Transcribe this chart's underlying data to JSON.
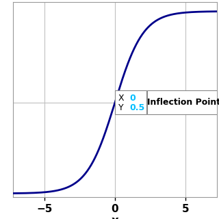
{
  "title": "",
  "xlabel": "x",
  "xlim": [
    -7.2,
    7.2
  ],
  "ylim": [
    -0.02,
    1.05
  ],
  "xticks": [
    -5,
    0,
    5
  ],
  "line_color": "#00008B",
  "line_width": 2.0,
  "background_color": "#ffffff",
  "grid_color": "#c0c0c0",
  "annotation_label": "Inflection Point",
  "annotation_x_label": "X",
  "annotation_y_label": "Y",
  "annotation_x_val": "0",
  "annotation_y_val": "0.5",
  "cyan_color": "#00BFFF",
  "label_color": "#000000"
}
